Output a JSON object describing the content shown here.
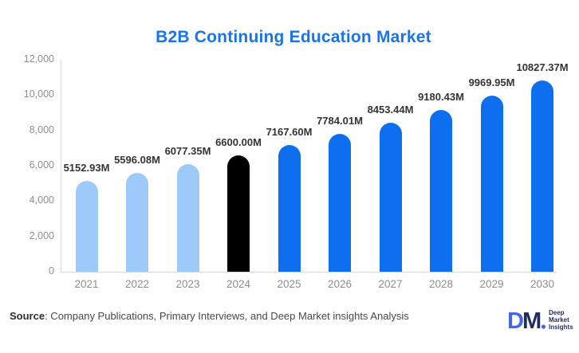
{
  "chart_data": {
    "type": "bar",
    "title": "B2B Continuing Education Market",
    "categories": [
      "2021",
      "2022",
      "2023",
      "2024",
      "2025",
      "2026",
      "2027",
      "2028",
      "2029",
      "2030"
    ],
    "values": [
      5152.93,
      5596.08,
      6077.35,
      6600.0,
      7167.6,
      7784.01,
      8453.44,
      9180.43,
      9969.95,
      10827.37
    ],
    "value_labels": [
      "5152.93M",
      "5596.08M",
      "6077.35M",
      "6600.00M",
      "7167.60M",
      "7784.01M",
      "8453.44M",
      "9180.43M",
      "9969.95M",
      "10827.37M"
    ],
    "bar_colors": [
      "#9ecaf9",
      "#9ecaf9",
      "#9ecaf9",
      "#000000",
      "#0d6ef0",
      "#0d6ef0",
      "#0d6ef0",
      "#0d6ef0",
      "#0d6ef0",
      "#0d6ef0"
    ],
    "xlabel": "",
    "ylabel": "",
    "ylim": [
      0,
      12000
    ],
    "ytick_values": [
      0,
      2000,
      4000,
      6000,
      8000,
      10000,
      12000
    ],
    "ytick_labels": [
      "0",
      "2,000",
      "4,000",
      "6,000",
      "8,000",
      "10,000",
      "12,000"
    ],
    "grid": false,
    "legend": false,
    "bar_top_style": "rounded"
  },
  "colors": {
    "title": "#1a73e8",
    "historical_bar": "#9ecaf9",
    "base_year_bar": "#000000",
    "forecast_bar": "#0d6ef0",
    "axis_line": "#d9d9d9",
    "tick_text": "#8d8d8d",
    "value_text": "#333333",
    "logo_blue": "#4667e0",
    "logo_navy": "#232c5f"
  },
  "footer": {
    "source_label": "Source",
    "source_rest": ": Company Publications, Primary Interviews, and Deep Market insights Analysis"
  },
  "logo": {
    "monogram_d": "D",
    "monogram_m": "M",
    "line1": "Deep",
    "line2": "Market",
    "line3": "Insights"
  }
}
